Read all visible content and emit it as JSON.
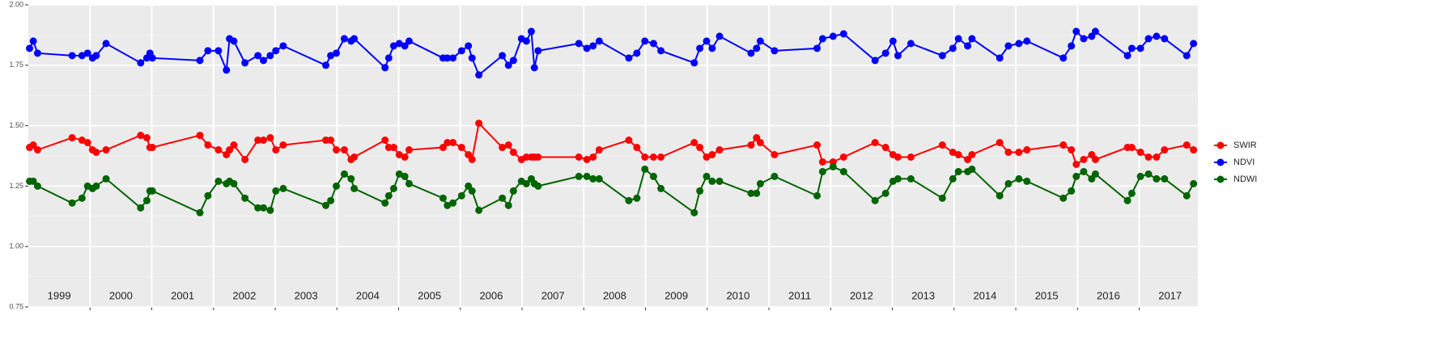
{
  "chart_data": {
    "type": "line",
    "x": [
      1999.02,
      1999.08,
      1999.15,
      1999.71,
      1999.87,
      1999.96,
      2000.04,
      2000.1,
      2000.26,
      2000.82,
      2000.92,
      2000.97,
      2001.01,
      2001.78,
      2001.91,
      2002.08,
      2002.21,
      2002.26,
      2002.33,
      2002.51,
      2002.72,
      2002.81,
      2002.92,
      2003.01,
      2003.13,
      2003.82,
      2003.9,
      2003.99,
      2004.12,
      2004.23,
      2004.28,
      2004.78,
      2004.84,
      2004.92,
      2005.01,
      2005.1,
      2005.17,
      2005.72,
      2005.79,
      2005.88,
      2006.02,
      2006.13,
      2006.19,
      2006.3,
      2006.68,
      2006.78,
      2006.86,
      2006.99,
      2007.07,
      2007.15,
      2007.2,
      2007.26,
      2007.92,
      2008.05,
      2008.15,
      2008.25,
      2008.73,
      2008.86,
      2008.99,
      2009.13,
      2009.25,
      2009.79,
      2009.88,
      2009.99,
      2010.08,
      2010.2,
      2010.71,
      2010.8,
      2010.86,
      2011.09,
      2011.78,
      2011.87,
      2012.04,
      2012.21,
      2012.72,
      2012.89,
      2013.01,
      2013.09,
      2013.3,
      2013.81,
      2013.98,
      2014.07,
      2014.22,
      2014.29,
      2014.74,
      2014.88,
      2015.05,
      2015.18,
      2015.77,
      2015.9,
      2015.98,
      2016.1,
      2016.23,
      2016.29,
      2016.81,
      2016.88,
      2017.02,
      2017.15,
      2017.28,
      2017.41,
      2017.77,
      2017.88
    ],
    "series": [
      {
        "name": "SWIR",
        "color": "#ff0000",
        "values": [
          1.41,
          1.42,
          1.4,
          1.45,
          1.44,
          1.43,
          1.4,
          1.39,
          1.4,
          1.46,
          1.45,
          1.41,
          1.41,
          1.46,
          1.42,
          1.4,
          1.38,
          1.4,
          1.42,
          1.36,
          1.44,
          1.44,
          1.45,
          1.4,
          1.42,
          1.44,
          1.44,
          1.4,
          1.4,
          1.36,
          1.37,
          1.44,
          1.41,
          1.41,
          1.38,
          1.37,
          1.4,
          1.41,
          1.43,
          1.43,
          1.41,
          1.38,
          1.36,
          1.51,
          1.41,
          1.42,
          1.39,
          1.36,
          1.37,
          1.37,
          1.37,
          1.37,
          1.37,
          1.36,
          1.37,
          1.4,
          1.44,
          1.41,
          1.37,
          1.37,
          1.37,
          1.43,
          1.41,
          1.37,
          1.38,
          1.4,
          1.42,
          1.45,
          1.43,
          1.38,
          1.42,
          1.35,
          1.35,
          1.37,
          1.43,
          1.41,
          1.38,
          1.37,
          1.37,
          1.42,
          1.39,
          1.38,
          1.36,
          1.38,
          1.43,
          1.39,
          1.39,
          1.4,
          1.42,
          1.4,
          1.34,
          1.36,
          1.38,
          1.36,
          1.41,
          1.41,
          1.39,
          1.37,
          1.37,
          1.4,
          1.42,
          1.4
        ]
      },
      {
        "name": "NDVI",
        "color": "#0000ff",
        "values": [
          1.82,
          1.85,
          1.8,
          1.79,
          1.79,
          1.8,
          1.78,
          1.79,
          1.84,
          1.76,
          1.78,
          1.8,
          1.78,
          1.77,
          1.81,
          1.81,
          1.73,
          1.86,
          1.85,
          1.76,
          1.79,
          1.77,
          1.79,
          1.81,
          1.83,
          1.75,
          1.79,
          1.8,
          1.86,
          1.85,
          1.86,
          1.74,
          1.78,
          1.83,
          1.84,
          1.83,
          1.85,
          1.78,
          1.78,
          1.78,
          1.81,
          1.83,
          1.78,
          1.71,
          1.79,
          1.75,
          1.77,
          1.86,
          1.85,
          1.89,
          1.74,
          1.81,
          1.84,
          1.82,
          1.83,
          1.85,
          1.78,
          1.8,
          1.85,
          1.84,
          1.81,
          1.76,
          1.82,
          1.85,
          1.82,
          1.87,
          1.8,
          1.82,
          1.85,
          1.81,
          1.82,
          1.86,
          1.87,
          1.88,
          1.77,
          1.8,
          1.85,
          1.79,
          1.84,
          1.79,
          1.82,
          1.86,
          1.83,
          1.86,
          1.78,
          1.83,
          1.84,
          1.85,
          1.78,
          1.83,
          1.89,
          1.86,
          1.87,
          1.89,
          1.79,
          1.82,
          1.82,
          1.86,
          1.87,
          1.86,
          1.79,
          1.84
        ]
      },
      {
        "name": "NDWI",
        "color": "#006400",
        "values": [
          1.27,
          1.27,
          1.25,
          1.18,
          1.2,
          1.25,
          1.24,
          1.25,
          1.28,
          1.16,
          1.19,
          1.23,
          1.23,
          1.14,
          1.21,
          1.27,
          1.26,
          1.27,
          1.26,
          1.2,
          1.16,
          1.16,
          1.15,
          1.23,
          1.24,
          1.17,
          1.19,
          1.25,
          1.3,
          1.28,
          1.24,
          1.18,
          1.21,
          1.24,
          1.3,
          1.29,
          1.26,
          1.2,
          1.17,
          1.18,
          1.21,
          1.25,
          1.23,
          1.15,
          1.2,
          1.17,
          1.23,
          1.27,
          1.26,
          1.28,
          1.26,
          1.25,
          1.29,
          1.29,
          1.28,
          1.28,
          1.19,
          1.2,
          1.32,
          1.29,
          1.24,
          1.14,
          1.23,
          1.29,
          1.27,
          1.27,
          1.22,
          1.22,
          1.26,
          1.29,
          1.21,
          1.31,
          1.33,
          1.31,
          1.19,
          1.22,
          1.27,
          1.28,
          1.28,
          1.2,
          1.28,
          1.31,
          1.31,
          1.32,
          1.21,
          1.26,
          1.28,
          1.27,
          1.2,
          1.23,
          1.29,
          1.31,
          1.28,
          1.3,
          1.19,
          1.22,
          1.29,
          1.3,
          1.28,
          1.28,
          1.21,
          1.26
        ]
      }
    ],
    "xlim": [
      1999,
      2017.95
    ],
    "xticks": [
      {
        "value": 1999.5,
        "label": "1999"
      },
      {
        "value": 2000.5,
        "label": "2000"
      },
      {
        "value": 2001.5,
        "label": "2001"
      },
      {
        "value": 2002.5,
        "label": "2002"
      },
      {
        "value": 2003.5,
        "label": "2003"
      },
      {
        "value": 2004.5,
        "label": "2004"
      },
      {
        "value": 2005.5,
        "label": "2005"
      },
      {
        "value": 2006.5,
        "label": "2006"
      },
      {
        "value": 2007.5,
        "label": "2007"
      },
      {
        "value": 2008.5,
        "label": "2008"
      },
      {
        "value": 2009.5,
        "label": "2009"
      },
      {
        "value": 2010.5,
        "label": "2010"
      },
      {
        "value": 2011.5,
        "label": "2011"
      },
      {
        "value": 2012.5,
        "label": "2012"
      },
      {
        "value": 2013.5,
        "label": "2013"
      },
      {
        "value": 2014.5,
        "label": "2014"
      },
      {
        "value": 2015.5,
        "label": "2015"
      },
      {
        "value": 2016.5,
        "label": "2016"
      },
      {
        "value": 2017.5,
        "label": "2017"
      }
    ],
    "xgrid": [
      2000,
      2001,
      2002,
      2003,
      2004,
      2005,
      2006,
      2007,
      2008,
      2009,
      2010,
      2011,
      2012,
      2013,
      2014,
      2015,
      2016,
      2017
    ],
    "ylim": [
      0.75,
      2.0
    ],
    "yticks": [
      0.75,
      {
        "value": 1.0,
        "label": "1.00"
      },
      1.25,
      {
        "value": 1.5,
        "label": "1.50"
      },
      1.75,
      {
        "value": 2.0,
        "label": "2.00"
      }
    ],
    "yminor": [
      0.875,
      1.125,
      1.375,
      1.625,
      1.875
    ],
    "grid": true,
    "legend": "right"
  }
}
